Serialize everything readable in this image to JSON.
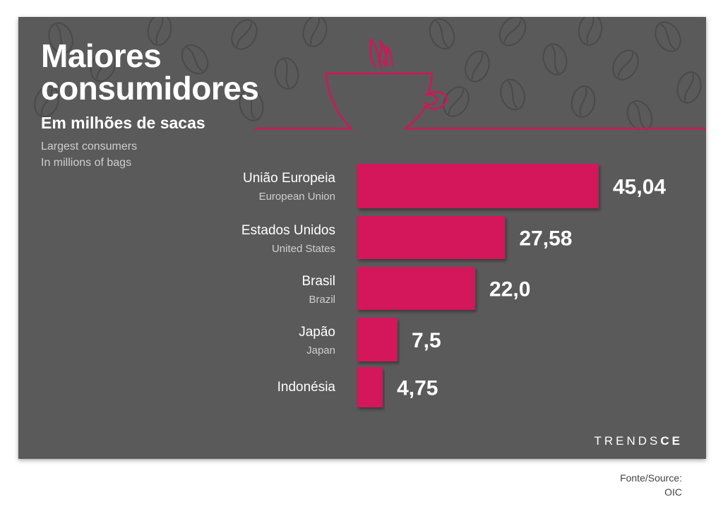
{
  "header": {
    "title_line1": "Maiores",
    "title_line2": "consumidores",
    "subtitle_pt": "Em milhões de sacas",
    "subtitle_en_line1": "Largest consumers",
    "subtitle_en_line2": "In millions of bags"
  },
  "brand": {
    "prefix": "TRENDS",
    "suffix": "CE"
  },
  "source": {
    "line1": "Fonte/Source:",
    "line2": "OIC"
  },
  "colors": {
    "background": "#5a5a5a",
    "bar": "#d4145a",
    "accent_line": "#d4145a",
    "text": "#ffffff",
    "subtext": "#cfcfcf"
  },
  "icons": [
    "coffee-cup-icon",
    "coffee-bean-pattern"
  ],
  "chart_data": {
    "type": "bar",
    "orientation": "horizontal",
    "categories": [
      "União Europeia",
      "Estados Unidos",
      "Brasil",
      "Japão",
      "Indonésia"
    ],
    "categories_en": [
      "European Union",
      "United States",
      "Brazil",
      "Japan",
      ""
    ],
    "values": [
      45.04,
      27.58,
      22.0,
      7.5,
      4.75
    ],
    "value_labels": [
      "45,04",
      "27,58",
      "22,0",
      "7,5",
      "4,75"
    ],
    "title": "Maiores consumidores",
    "xlabel": "",
    "ylabel": "",
    "xlim": [
      0,
      45.04
    ],
    "grid": false
  }
}
